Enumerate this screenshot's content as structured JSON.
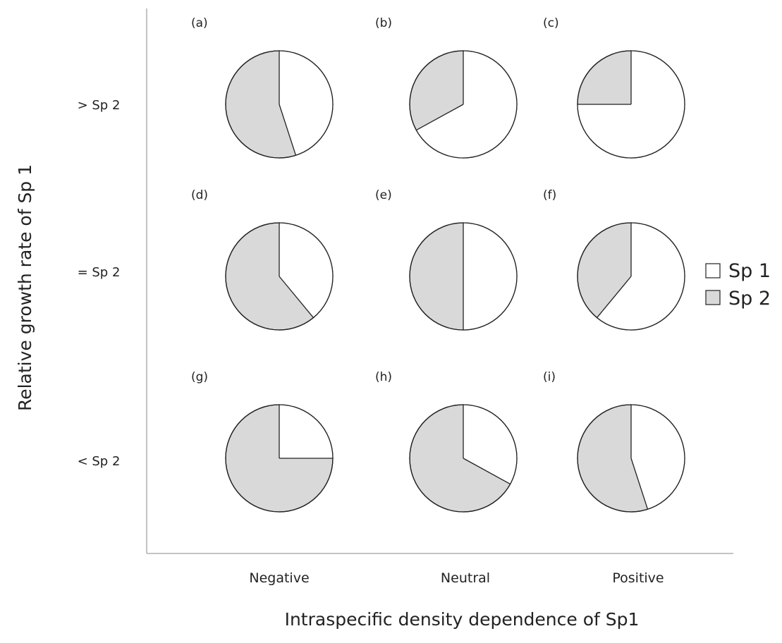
{
  "chart_data": {
    "type": "pie",
    "title": "",
    "xlabel": "Intraspecific density dependence of Sp1",
    "ylabel": "Relative growth rate of Sp 1",
    "columns": [
      "Negative",
      "Neutral",
      "Positive"
    ],
    "rows": [
      "> Sp 2",
      "= Sp 2",
      "< Sp 2"
    ],
    "legend": {
      "position": "right",
      "entries": [
        {
          "name": "Sp 1",
          "color": "#ffffff"
        },
        {
          "name": "Sp 2",
          "color": "#d9d9d9"
        }
      ]
    },
    "colors": {
      "sp1": "#ffffff",
      "sp2": "#d9d9d9",
      "stroke": "#222222"
    },
    "panels": [
      {
        "label": "(a)",
        "row": "> Sp 2",
        "column": "Negative",
        "values": {
          "Sp 1": 45,
          "Sp 2": 55
        }
      },
      {
        "label": "(b)",
        "row": "> Sp 2",
        "column": "Neutral",
        "values": {
          "Sp 1": 67,
          "Sp 2": 33
        }
      },
      {
        "label": "(c)",
        "row": "> Sp 2",
        "column": "Positive",
        "values": {
          "Sp 1": 75,
          "Sp 2": 25
        }
      },
      {
        "label": "(d)",
        "row": "= Sp 2",
        "column": "Negative",
        "values": {
          "Sp 1": 39,
          "Sp 2": 61
        }
      },
      {
        "label": "(e)",
        "row": "= Sp 2",
        "column": "Neutral",
        "values": {
          "Sp 1": 50,
          "Sp 2": 50
        }
      },
      {
        "label": "(f)",
        "row": "= Sp 2",
        "column": "Positive",
        "values": {
          "Sp 1": 61,
          "Sp 2": 39
        }
      },
      {
        "label": "(g)",
        "row": "< Sp 2",
        "column": "Negative",
        "values": {
          "Sp 1": 25,
          "Sp 2": 75
        }
      },
      {
        "label": "(h)",
        "row": "< Sp 2",
        "column": "Neutral",
        "values": {
          "Sp 1": 33,
          "Sp 2": 67
        }
      },
      {
        "label": "(i)",
        "row": "< Sp 2",
        "column": "Positive",
        "values": {
          "Sp 1": 45,
          "Sp 2": 55
        }
      }
    ]
  }
}
